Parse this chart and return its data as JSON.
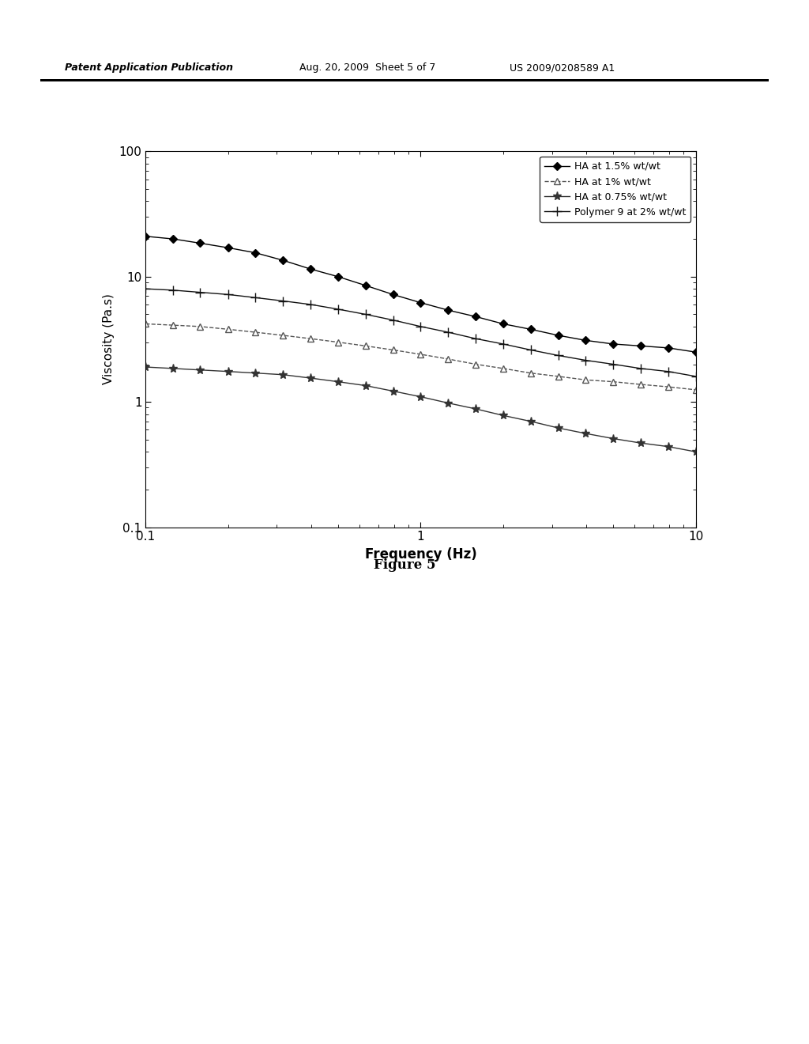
{
  "title": "",
  "xlabel": "Frequency (Hz)",
  "ylabel": "Viscosity (Pa.s)",
  "xlim": [
    0.1,
    10
  ],
  "ylim": [
    0.1,
    100
  ],
  "header_left": "Patent Application Publication",
  "header_mid": "Aug. 20, 2009  Sheet 5 of 7",
  "header_right": "US 2009/0208589 A1",
  "figure_label": "Figure 5",
  "series": [
    {
      "label": "HA at 1.5% wt/wt",
      "marker": "D",
      "linestyle": "-",
      "color": "#000000",
      "markersize": 5,
      "markerfacecolor": "#000000",
      "x": [
        0.1,
        0.126,
        0.158,
        0.2,
        0.251,
        0.316,
        0.398,
        0.501,
        0.631,
        0.794,
        1.0,
        1.259,
        1.585,
        1.995,
        2.512,
        3.162,
        3.981,
        5.012,
        6.31,
        7.943,
        10.0
      ],
      "y": [
        21.0,
        20.0,
        18.5,
        17.0,
        15.5,
        13.5,
        11.5,
        10.0,
        8.5,
        7.2,
        6.2,
        5.4,
        4.8,
        4.2,
        3.8,
        3.4,
        3.1,
        2.9,
        2.8,
        2.7,
        2.5
      ]
    },
    {
      "label": "HA at 1% wt/wt",
      "marker": "^",
      "linestyle": "--",
      "color": "#555555",
      "markersize": 6,
      "markerfacecolor": "white",
      "x": [
        0.1,
        0.126,
        0.158,
        0.2,
        0.251,
        0.316,
        0.398,
        0.501,
        0.631,
        0.794,
        1.0,
        1.259,
        1.585,
        1.995,
        2.512,
        3.162,
        3.981,
        5.012,
        6.31,
        7.943,
        10.0
      ],
      "y": [
        4.2,
        4.1,
        4.0,
        3.8,
        3.6,
        3.4,
        3.2,
        3.0,
        2.8,
        2.6,
        2.4,
        2.2,
        2.0,
        1.85,
        1.7,
        1.6,
        1.5,
        1.45,
        1.38,
        1.32,
        1.25
      ]
    },
    {
      "label": "HA at 0.75% wt/wt",
      "marker": "*",
      "linestyle": "-",
      "color": "#333333",
      "markersize": 8,
      "markerfacecolor": "#333333",
      "x": [
        0.1,
        0.126,
        0.158,
        0.2,
        0.251,
        0.316,
        0.398,
        0.501,
        0.631,
        0.794,
        1.0,
        1.259,
        1.585,
        1.995,
        2.512,
        3.162,
        3.981,
        5.012,
        6.31,
        7.943,
        10.0
      ],
      "y": [
        1.9,
        1.85,
        1.8,
        1.75,
        1.7,
        1.65,
        1.55,
        1.45,
        1.35,
        1.22,
        1.1,
        0.98,
        0.88,
        0.78,
        0.7,
        0.62,
        0.56,
        0.51,
        0.47,
        0.44,
        0.4
      ]
    },
    {
      "label": "Polymer 9 at 2% wt/wt",
      "marker": "+",
      "linestyle": "-",
      "color": "#111111",
      "markersize": 8,
      "markerfacecolor": "#111111",
      "x": [
        0.1,
        0.126,
        0.158,
        0.2,
        0.251,
        0.316,
        0.398,
        0.501,
        0.631,
        0.794,
        1.0,
        1.259,
        1.585,
        1.995,
        2.512,
        3.162,
        3.981,
        5.012,
        6.31,
        7.943,
        10.0
      ],
      "y": [
        8.0,
        7.8,
        7.5,
        7.2,
        6.8,
        6.4,
        6.0,
        5.5,
        5.0,
        4.5,
        4.0,
        3.6,
        3.2,
        2.9,
        2.6,
        2.35,
        2.15,
        2.0,
        1.85,
        1.75,
        1.6
      ]
    }
  ]
}
